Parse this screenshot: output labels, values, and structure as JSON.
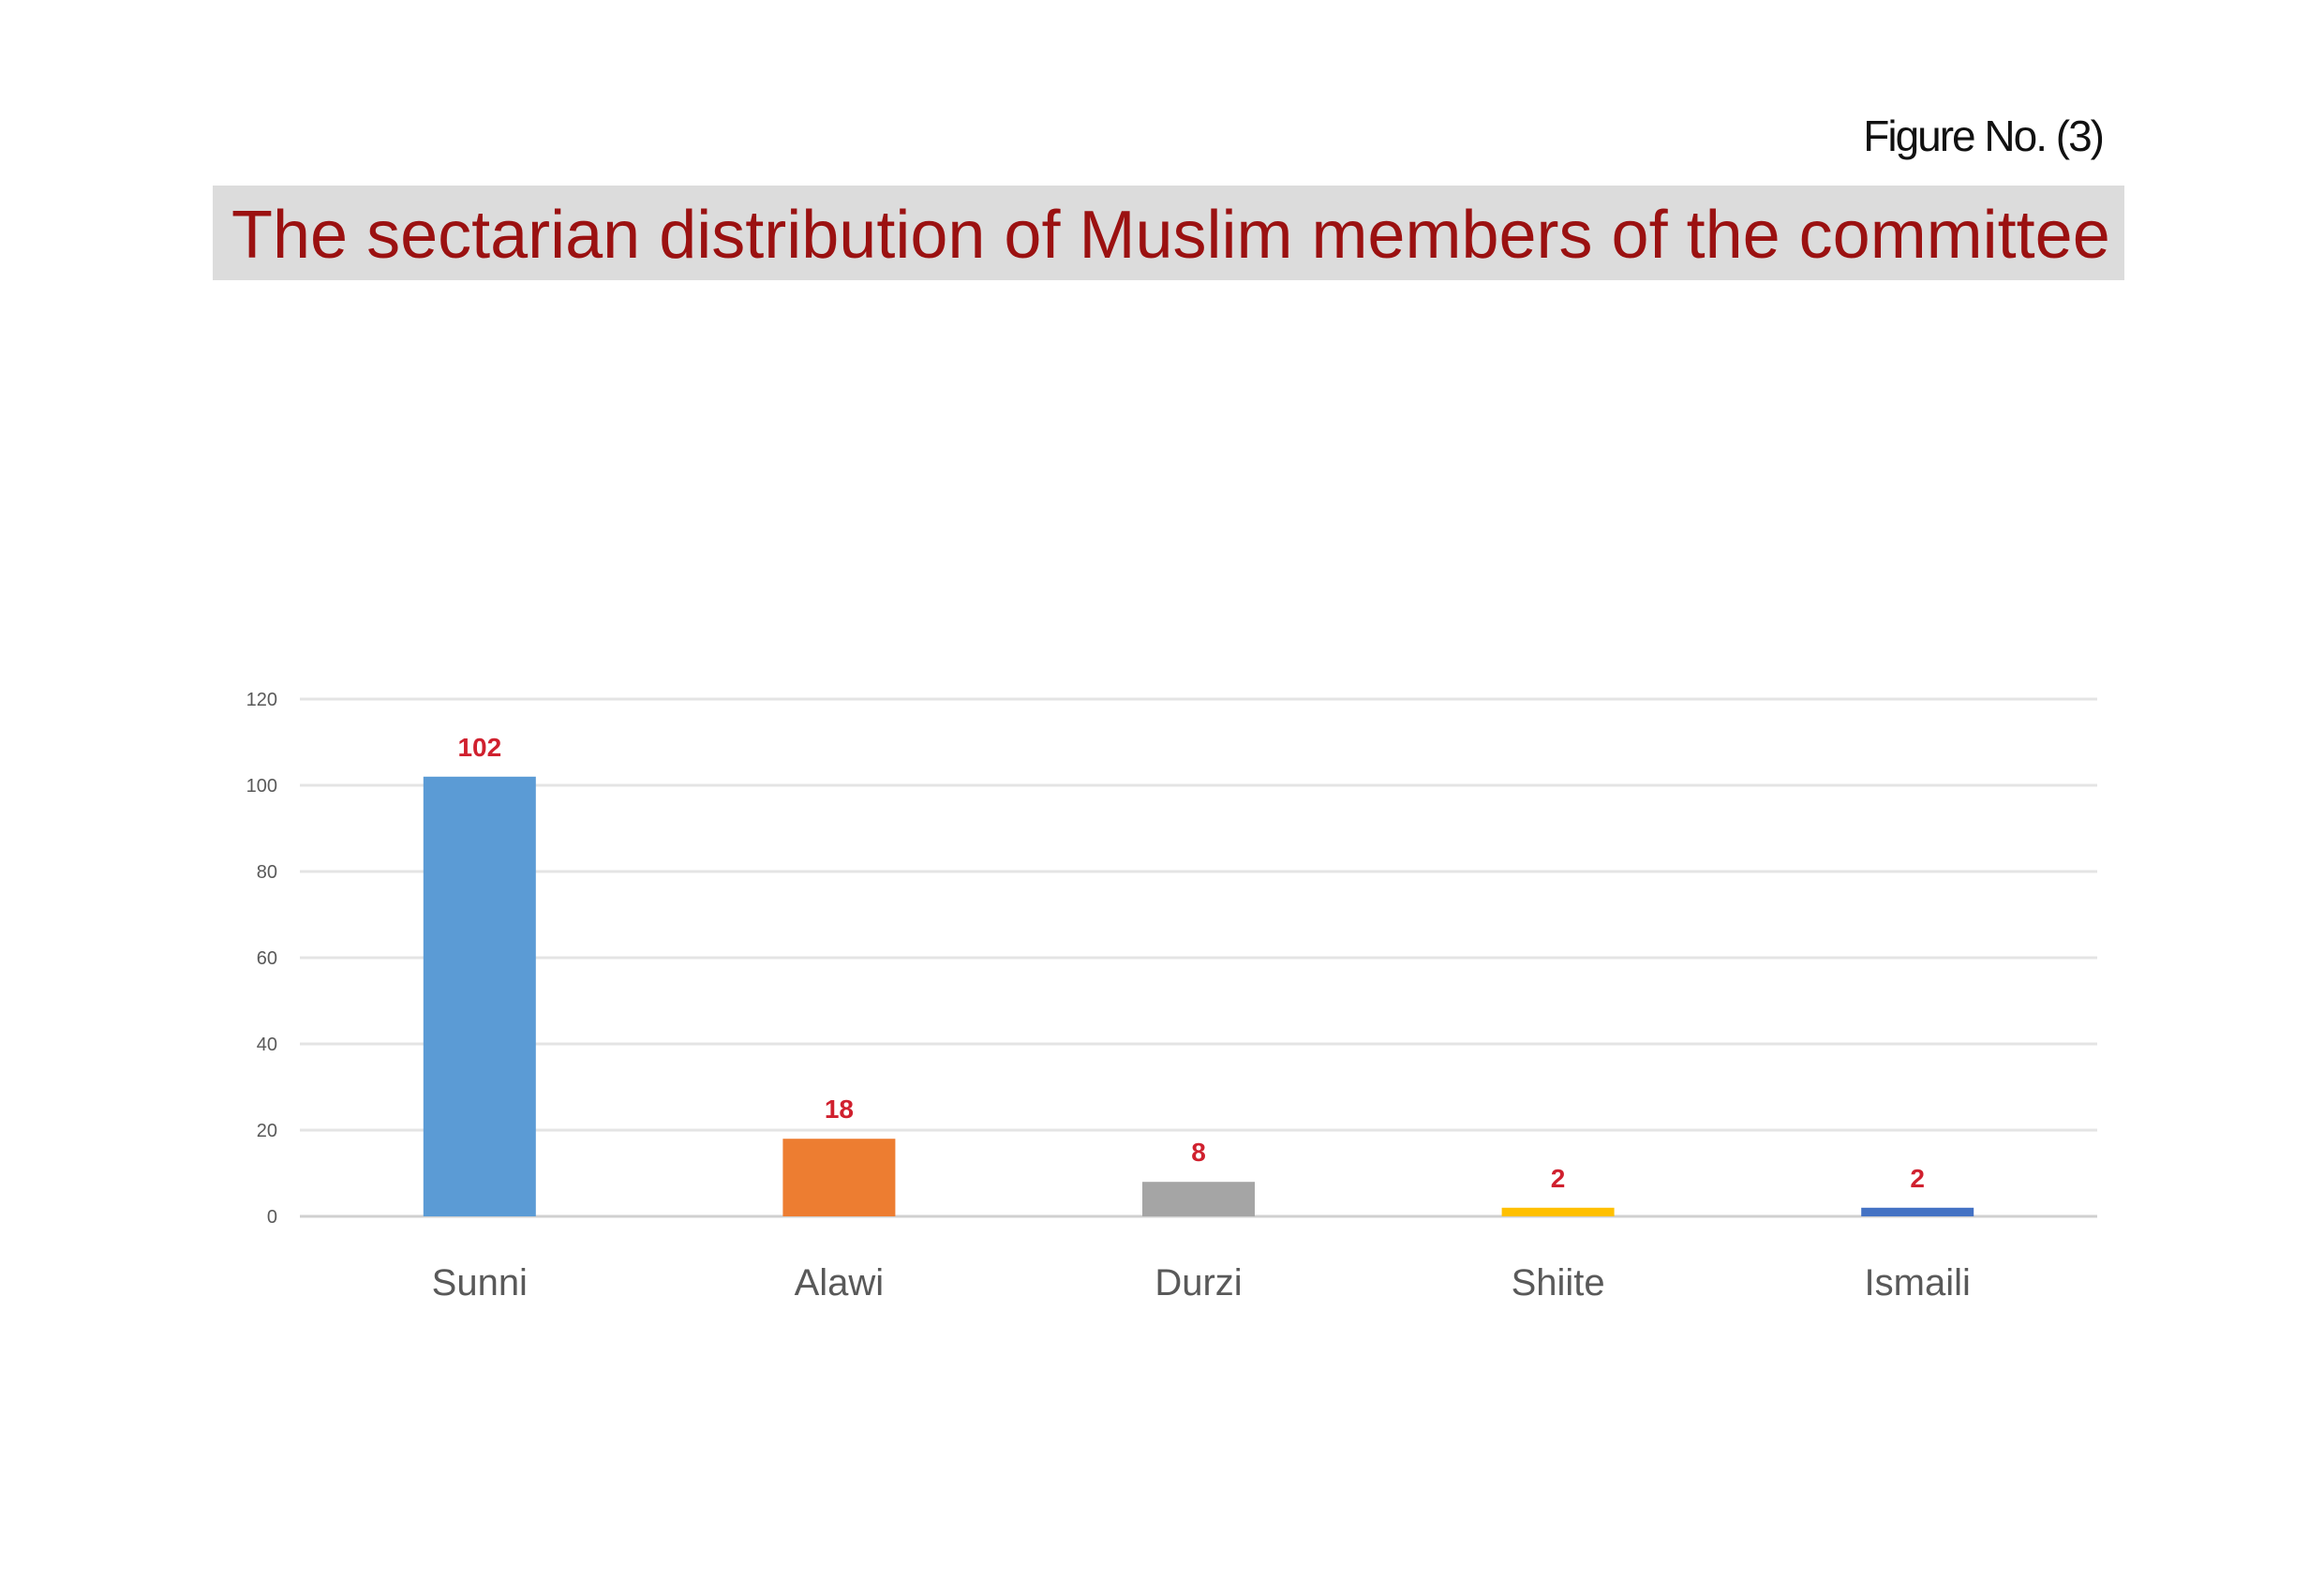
{
  "figure_label": "Figure No. (3)",
  "title": "The sectarian distribution of Muslim members of the committee",
  "chart_data": {
    "type": "bar",
    "title": "The sectarian distribution of Muslim members of the committee",
    "categories": [
      "Sunni",
      "Alawi",
      "Durzi",
      "Shiite",
      "Ismaili"
    ],
    "values": [
      102,
      18,
      8,
      2,
      2
    ],
    "colors": [
      "#5b9bd5",
      "#ed7d31",
      "#a5a5a5",
      "#ffc000",
      "#4472c4"
    ],
    "data_label_color": "#d0202e",
    "ylim": [
      0,
      120
    ],
    "yticks": [
      0,
      20,
      40,
      60,
      80,
      100,
      120
    ],
    "grid": true,
    "legend": "none",
    "xlabel": "",
    "ylabel": ""
  }
}
